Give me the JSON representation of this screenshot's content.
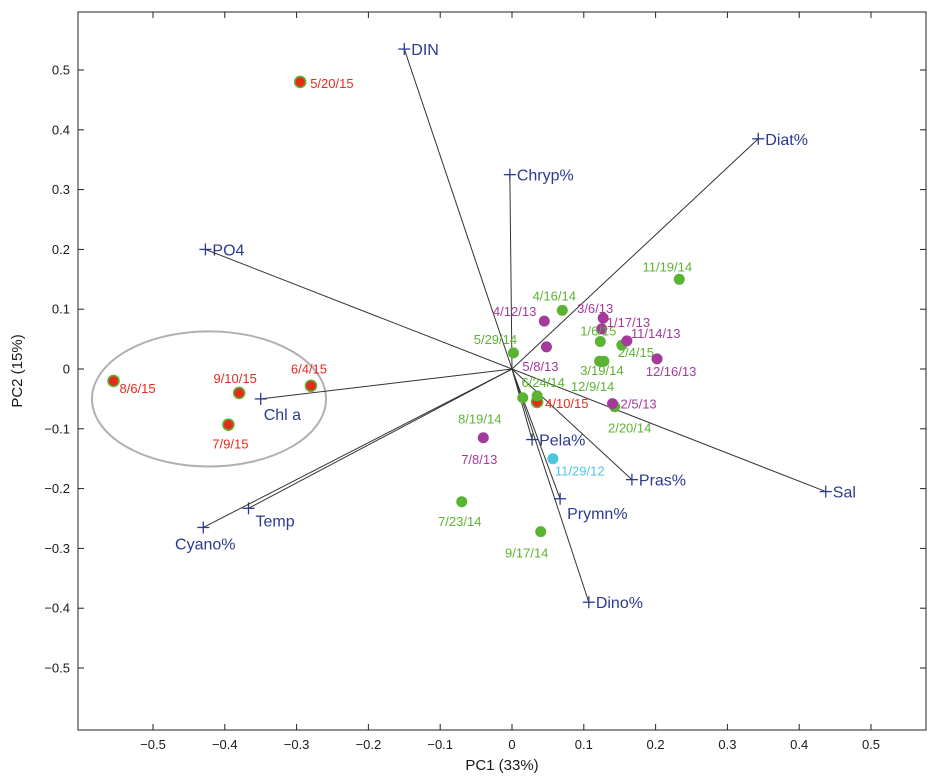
{
  "chart_data": {
    "type": "scatter",
    "subtype": "pca-biplot",
    "xlabel": "PC1 (33%)",
    "ylabel": "PC2 (15%)",
    "xlim": [
      -0.6,
      0.6
    ],
    "ylim": [
      -0.6,
      0.6
    ],
    "xticks": [
      -0.5,
      -0.4,
      -0.3,
      -0.2,
      -0.1,
      0,
      0.1,
      0.2,
      0.3,
      0.4,
      0.5
    ],
    "yticks": [
      -0.5,
      -0.4,
      -0.3,
      -0.2,
      -0.1,
      0,
      0.1,
      0.2,
      0.3,
      0.4,
      0.5
    ],
    "grid": false,
    "colors": {
      "vector": "#2b3a8f",
      "line": "#333333",
      "green": "#5ab432",
      "purple": "#a53a9b",
      "red": "#e8291c",
      "cyan": "#4ec6e0",
      "ellipse": "#b0b0b0"
    },
    "vectors": [
      {
        "label": "DIN",
        "x": -0.15,
        "y": 0.535
      },
      {
        "label": "Diat%",
        "x": 0.343,
        "y": 0.385
      },
      {
        "label": "Chryp%",
        "x": -0.003,
        "y": 0.325
      },
      {
        "label": "PO4",
        "x": -0.427,
        "y": 0.2
      },
      {
        "label": "Chl a",
        "x": -0.35,
        "y": -0.05
      },
      {
        "label": "Temp",
        "x": -0.367,
        "y": -0.233
      },
      {
        "label": "Cyano%",
        "x": -0.43,
        "y": -0.265
      },
      {
        "label": "Pela%",
        "x": 0.028,
        "y": -0.118
      },
      {
        "label": "Pras%",
        "x": 0.167,
        "y": -0.185
      },
      {
        "label": "Prymn%",
        "x": 0.067,
        "y": -0.217
      },
      {
        "label": "Dino%",
        "x": 0.107,
        "y": -0.39
      },
      {
        "label": "Sal",
        "x": 0.437,
        "y": -0.205
      }
    ],
    "points": [
      {
        "label": "5/20/15",
        "x": -0.295,
        "y": 0.48,
        "color": "red"
      },
      {
        "label": "8/6/15",
        "x": -0.555,
        "y": -0.02,
        "color": "red"
      },
      {
        "label": "9/10/15",
        "x": -0.38,
        "y": -0.04,
        "color": "red"
      },
      {
        "label": "6/4/15",
        "x": -0.28,
        "y": -0.028,
        "color": "red"
      },
      {
        "label": "7/9/15",
        "x": -0.395,
        "y": -0.093,
        "color": "red"
      },
      {
        "label": "4/10/15",
        "x": 0.035,
        "y": -0.055,
        "color": "red"
      },
      {
        "label": "11/19/14",
        "x": 0.233,
        "y": 0.15,
        "color": "green"
      },
      {
        "label": "4/16/14",
        "x": 0.07,
        "y": 0.098,
        "color": "green"
      },
      {
        "label": "5/29/14",
        "x": 0.002,
        "y": 0.027,
        "color": "green"
      },
      {
        "label": "1/6/15",
        "x": 0.123,
        "y": 0.046,
        "color": "green"
      },
      {
        "label": "2/4/15",
        "x": 0.153,
        "y": 0.04,
        "color": "green"
      },
      {
        "label": "3/19/14",
        "x": 0.128,
        "y": 0.013,
        "color": "green"
      },
      {
        "label": "12/9/14",
        "x": 0.122,
        "y": 0.013,
        "color": "green"
      },
      {
        "label": "6/24/14",
        "x": 0.035,
        "y": -0.045,
        "color": "green"
      },
      {
        "label": "8/19/14",
        "x": 0.015,
        "y": -0.048,
        "color": "green"
      },
      {
        "label": "2/20/14",
        "x": 0.143,
        "y": -0.063,
        "color": "green"
      },
      {
        "label": "7/23/14",
        "x": -0.07,
        "y": -0.222,
        "color": "green"
      },
      {
        "label": "9/17/14",
        "x": 0.04,
        "y": -0.272,
        "color": "green"
      },
      {
        "label": "4/12/13",
        "x": 0.045,
        "y": 0.08,
        "color": "purple"
      },
      {
        "label": "3/6/13",
        "x": 0.127,
        "y": 0.085,
        "color": "purple"
      },
      {
        "label": "1/17/13",
        "x": 0.125,
        "y": 0.067,
        "color": "purple"
      },
      {
        "label": "11/14/13",
        "x": 0.16,
        "y": 0.047,
        "color": "purple"
      },
      {
        "label": "5/8/13",
        "x": 0.048,
        "y": 0.037,
        "color": "purple"
      },
      {
        "label": "12/16/13",
        "x": 0.202,
        "y": 0.017,
        "color": "purple"
      },
      {
        "label": "2/5/13",
        "x": 0.14,
        "y": -0.058,
        "color": "purple"
      },
      {
        "label": "7/8/13",
        "x": -0.04,
        "y": -0.115,
        "color": "purple"
      },
      {
        "label": "11/29/12",
        "x": 0.057,
        "y": -0.15,
        "color": "cyan"
      }
    ],
    "ellipse": {
      "center": [
        -0.422,
        -0.05
      ],
      "rx": 0.163,
      "ry": 0.113
    }
  }
}
